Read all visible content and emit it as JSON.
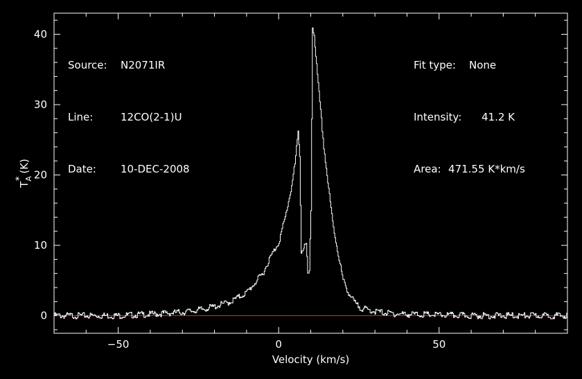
{
  "info": {
    "source_label": "Source:",
    "source_value": "N2071IR",
    "line_label": "Line:",
    "line_value": "12CO(2-1)U",
    "date_label": "Date:",
    "date_value": "10-DEC-2008",
    "fit_label": "Fit type:",
    "fit_value": "None",
    "intensity_label": "Intensity:",
    "intensity_value": "41.2 K",
    "area_label": "Area:",
    "area_value": "471.55 K*km/s"
  },
  "colors": {
    "background": "#000000",
    "axes": "#ffffff",
    "spectrum": "#ffffff",
    "baseline": "#ff2020"
  },
  "chart_data": {
    "type": "line",
    "xlabel": "Velocity (km/s)",
    "ylabel_main": "T",
    "ylabel_sub": "A",
    "ylabel_sup": "*",
    "ylabel_unit": "(K)",
    "xlim": [
      -70,
      90
    ],
    "ylim": [
      -2.5,
      43
    ],
    "xticks": [
      -50,
      0,
      50
    ],
    "xtick_labels": [
      "−50",
      "0",
      "50"
    ],
    "yticks": [
      0,
      10,
      20,
      30,
      40
    ],
    "ytick_labels": [
      "0",
      "10",
      "20",
      "30",
      "40"
    ],
    "baseline": 0,
    "grid": false,
    "series": [
      {
        "x": [
          -70,
          -50,
          -40,
          -30,
          -25,
          -20,
          -15,
          -10,
          -5,
          -3,
          0,
          2,
          4,
          5,
          6,
          6.5,
          7,
          7.5,
          8,
          8.5,
          9,
          9.5,
          10,
          10.5,
          11,
          11.5,
          12,
          13,
          14,
          15,
          16,
          17,
          18,
          19,
          20,
          22,
          24,
          26,
          30,
          35,
          40,
          50,
          60,
          70,
          80,
          90
        ],
        "y": [
          0,
          0,
          0.2,
          0.5,
          0.8,
          1.3,
          2,
          3.3,
          6,
          8,
          10.5,
          14,
          18.5,
          21.5,
          26,
          23,
          9,
          9.5,
          10,
          10,
          6,
          6,
          15,
          41,
          40,
          37,
          34,
          29,
          24,
          20,
          16,
          12.5,
          10,
          7.5,
          5,
          3,
          1.6,
          1,
          0.6,
          0.3,
          0.2,
          0.1,
          0,
          0,
          0,
          0
        ]
      }
    ]
  }
}
